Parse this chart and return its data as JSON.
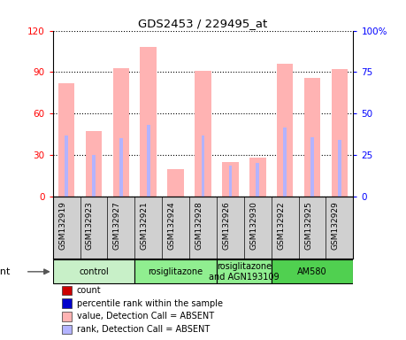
{
  "title": "GDS2453 / 229495_at",
  "samples": [
    "GSM132919",
    "GSM132923",
    "GSM132927",
    "GSM132921",
    "GSM132924",
    "GSM132928",
    "GSM132926",
    "GSM132930",
    "GSM132922",
    "GSM132925",
    "GSM132929"
  ],
  "bar_values": [
    82,
    47,
    93,
    108,
    20,
    91,
    25,
    28,
    96,
    86,
    92
  ],
  "rank_values": [
    44,
    30,
    42,
    52,
    0,
    44,
    22,
    24,
    50,
    43,
    41
  ],
  "groups": [
    {
      "label": "control",
      "start": 0,
      "end": 2,
      "color": "#c8f0c8"
    },
    {
      "label": "rosiglitazone",
      "start": 3,
      "end": 5,
      "color": "#90ee90"
    },
    {
      "label": "rosiglitazone\nand AGN193109",
      "start": 6,
      "end": 7,
      "color": "#90ee90"
    },
    {
      "label": "AM580",
      "start": 8,
      "end": 10,
      "color": "#50d050"
    }
  ],
  "ylim_left": [
    0,
    120
  ],
  "ylim_right": [
    0,
    100
  ],
  "yticks_left": [
    0,
    30,
    60,
    90,
    120
  ],
  "yticks_right": [
    0,
    25,
    50,
    75,
    100
  ],
  "yticklabels_right": [
    "0",
    "25",
    "50",
    "75",
    "100%"
  ],
  "bar_color_absent": "#ffb3b3",
  "rank_color_absent": "#b3b3ff",
  "bg_color": "#ffffff",
  "label_area_color": "#d0d0d0",
  "legend_items": [
    {
      "color": "#cc0000",
      "label": "count"
    },
    {
      "color": "#0000cc",
      "label": "percentile rank within the sample"
    },
    {
      "color": "#ffb3b3",
      "label": "value, Detection Call = ABSENT"
    },
    {
      "color": "#b3b3ff",
      "label": "rank, Detection Call = ABSENT"
    }
  ]
}
